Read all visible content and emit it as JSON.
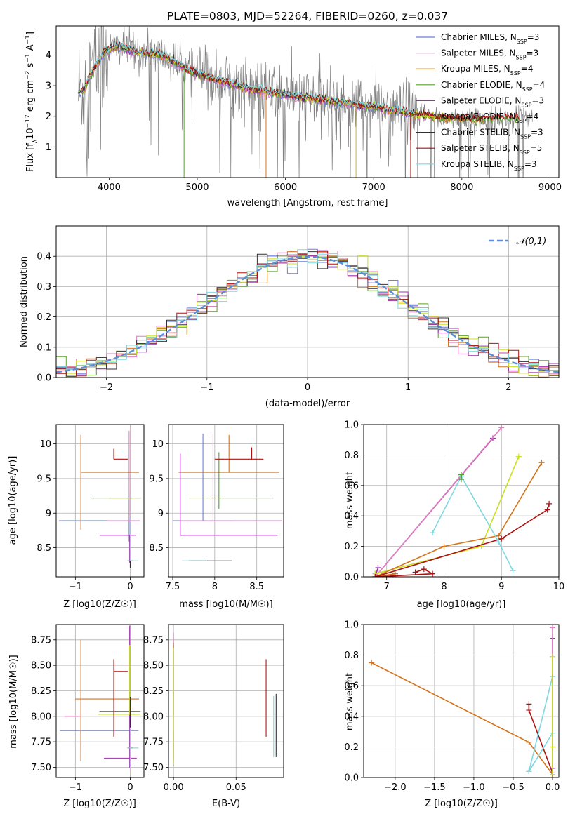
{
  "chart_data": [
    {
      "panel": "spectrum",
      "type": "line",
      "title": "PLATE=0803, MJD=52264, FIBERID=0260, z=0.037",
      "xlabel": "wavelength [Angstrom, rest frame]",
      "ylabel": "Flux [f_λ 10^-17 erg cm^-2 s^-1 A^-1]",
      "xlim": [
        3400,
        9100
      ],
      "ylim": [
        0,
        4.95
      ],
      "xticks": [
        4000,
        5000,
        6000,
        7000,
        8000,
        9000
      ],
      "yticks": [
        1,
        2,
        3,
        4
      ],
      "grid": false,
      "legend_position": "top-right",
      "continuum_anchors": [
        [
          3700,
          2.8
        ],
        [
          3800,
          3.4
        ],
        [
          3950,
          4.1
        ],
        [
          4100,
          4.3
        ],
        [
          4300,
          4.1
        ],
        [
          4600,
          4.0
        ],
        [
          4900,
          3.5
        ],
        [
          5200,
          3.2
        ],
        [
          5600,
          2.9
        ],
        [
          6000,
          2.7
        ],
        [
          6500,
          2.5
        ],
        [
          7000,
          2.3
        ],
        [
          7400,
          2.1
        ],
        [
          7800,
          1.95
        ],
        [
          8200,
          1.9
        ],
        [
          8600,
          1.95
        ],
        [
          8800,
          2.0
        ]
      ],
      "legend": [
        {
          "label": "Chabrier MILES, N",
          "sub": "SSP",
          "tail": "=3",
          "color": "#6b7fd7"
        },
        {
          "label": "Salpeter MILES, N",
          "sub": "SSP",
          "tail": "=3",
          "color": "#e07fc0"
        },
        {
          "label": "Kroupa MILES, N",
          "sub": "SSP",
          "tail": "=4",
          "color": "#d4741a"
        },
        {
          "label": "Chabrier ELODIE, N",
          "sub": "SSP",
          "tail": "=4",
          "color": "#5aa02c"
        },
        {
          "label": "Salpeter ELODIE, N",
          "sub": "SSP",
          "tail": "=3",
          "color": "#9b30a8"
        },
        {
          "label": "Kroupa ELODIE, N",
          "sub": "SSP",
          "tail": "=4",
          "color": "#c8e020"
        },
        {
          "label": "Chabrier STELIB, N",
          "sub": "SSP",
          "tail": "=3",
          "color": "#333333"
        },
        {
          "label": "Salpeter STELIB, N",
          "sub": "SSP",
          "tail": "=5",
          "color": "#b01010"
        },
        {
          "label": "Kroupa STELIB, N",
          "sub": "SSP",
          "tail": "=3",
          "color": "#7fd8e0"
        }
      ],
      "data_color": "#808080"
    },
    {
      "panel": "residuals",
      "type": "step-histogram",
      "xlabel": "(data-model)/error",
      "ylabel": "Normed distribution",
      "xlim": [
        -2.5,
        2.5
      ],
      "ylim": [
        0,
        0.5
      ],
      "xticks": [
        -2,
        -1,
        0,
        1,
        2
      ],
      "yticks": [
        0.0,
        0.1,
        0.2,
        0.3,
        0.4
      ],
      "grid": true,
      "bins": {
        "start": -2.5,
        "width": 0.1,
        "count": 50
      },
      "normal_legend": "𝒩(0,1)",
      "normal_color": "#5b8ed6",
      "series_colors": [
        "#6b7fd7",
        "#e07fc0",
        "#d4741a",
        "#5aa02c",
        "#9b30a8",
        "#c8e020",
        "#333333",
        "#b01010",
        "#7fd8e0"
      ]
    },
    {
      "panel": "Z-age",
      "type": "errorbar",
      "xlabel": "Z [log10(Z/Z☉)]",
      "ylabel": "age  [log10(age/yr)]",
      "xlim": [
        -1.35,
        0.25
      ],
      "ylim": [
        8.08,
        10.28
      ],
      "xticks": [
        -1,
        0
      ],
      "yticks": [
        8.5,
        9.0,
        9.5,
        10.0
      ],
      "grid": true,
      "points": [
        {
          "c": "#6b7fd7",
          "x": -0.02,
          "y": 8.89,
          "xe": [
            1.28,
            0.02
          ],
          "ye": [
            0.3,
            0.3
          ]
        },
        {
          "c": "#e07fc0",
          "x": -0.02,
          "y": 8.89,
          "xe": [
            0.4,
            0.2
          ],
          "ye": [
            0.0,
            1.3
          ]
        },
        {
          "c": "#d4741a",
          "x": -0.9,
          "y": 9.59,
          "xe": [
            0.0,
            1.06
          ],
          "ye": [
            0.83,
            0.54
          ]
        },
        {
          "c": "#5aa02c",
          "x": -0.01,
          "y": 9.22,
          "xe": [
            0.7,
            0.2
          ],
          "ye": [
            0.0,
            0.0
          ]
        },
        {
          "c": "#9b30a8",
          "x": -0.01,
          "y": 8.68,
          "xe": [
            0.55,
            0.12
          ],
          "ye": [
            0.4,
            0.0
          ]
        },
        {
          "c": "#c8e020",
          "x": -0.01,
          "y": 9.22,
          "xe": [
            0.4,
            0.2
          ],
          "ye": [
            0.0,
            0.0
          ]
        },
        {
          "c": "#333333",
          "x": 0.0,
          "y": 8.31,
          "xe": [
            0.05,
            0.05
          ],
          "ye": [
            0.1,
            0.0
          ]
        },
        {
          "c": "#b01010",
          "x": -0.3,
          "y": 9.78,
          "xe": [
            0.0,
            0.26
          ],
          "ye": [
            0.0,
            0.15
          ]
        },
        {
          "c": "#7fd8e0",
          "x": 0.0,
          "y": 8.31,
          "xe": [
            0.05,
            0.15
          ],
          "ye": [
            0.0,
            1.0
          ]
        }
      ]
    },
    {
      "panel": "mass-age",
      "type": "errorbar",
      "xlabel": "mass [log10(M/M☉)]",
      "ylabel": "",
      "xlim": [
        7.45,
        8.82
      ],
      "ylim": [
        8.08,
        10.28
      ],
      "xticks": [
        7.5,
        8.0,
        8.5
      ],
      "yticks": [
        8.5,
        9.0,
        9.5,
        10.0
      ],
      "grid": true,
      "points": [
        {
          "c": "#6b7fd7",
          "x": 7.86,
          "y": 8.89,
          "xe": [
            0.36,
            0.36
          ],
          "ye": [
            0.0,
            1.26
          ]
        },
        {
          "c": "#e07fc0",
          "x": 7.98,
          "y": 8.89,
          "xe": [
            0.4,
            0.82
          ],
          "ye": [
            0.0,
            1.25
          ]
        },
        {
          "c": "#d4741a",
          "x": 8.17,
          "y": 9.59,
          "xe": [
            0.6,
            0.6
          ],
          "ye": [
            0.0,
            0.54
          ]
        },
        {
          "c": "#5aa02c",
          "x": 8.05,
          "y": 9.22,
          "xe": [
            0.0,
            0.65
          ],
          "ye": [
            0.16,
            0.66
          ]
        },
        {
          "c": "#9b30a8",
          "x": 7.59,
          "y": 8.68,
          "xe": [
            0.0,
            1.16
          ],
          "ye": [
            0.0,
            1.18
          ]
        },
        {
          "c": "#c8e020",
          "x": 7.69,
          "y": 9.22,
          "xe": [
            0.0,
            0.4
          ],
          "ye": [
            0.0,
            0.0
          ]
        },
        {
          "c": "#333333",
          "x": 7.69,
          "y": 8.31,
          "xe": [
            0.0,
            0.51
          ],
          "ye": [
            0.0,
            0.0
          ]
        },
        {
          "c": "#b01010",
          "x": 8.44,
          "y": 9.78,
          "xe": [
            0.44,
            0.14
          ],
          "ye": [
            0.0,
            0.17
          ]
        },
        {
          "c": "#7fd8e0",
          "x": 7.69,
          "y": 8.31,
          "xe": [
            0.08,
            0.22
          ],
          "ye": [
            0.0,
            0.0
          ]
        }
      ]
    },
    {
      "panel": "age-weight",
      "type": "line",
      "xlabel": "age  [log10(age/yr)]",
      "ylabel": "mass weight",
      "xlim": [
        6.6,
        10.0
      ],
      "ylim": [
        0,
        1.0
      ],
      "xticks": [
        7,
        8,
        9,
        10
      ],
      "yticks": [
        0.0,
        0.2,
        0.4,
        0.6,
        0.8,
        1.0
      ],
      "grid": true,
      "series": [
        {
          "c": "#9b30a8",
          "x": [
            6.85,
            6.8,
            8.85
          ],
          "y": [
            0.06,
            0.0,
            0.91
          ]
        },
        {
          "c": "#e07fc0",
          "x": [
            6.8,
            6.8,
            9.0
          ],
          "y": [
            0.02,
            0.0,
            0.98
          ]
        },
        {
          "c": "#c8e020",
          "x": [
            6.8,
            8.65,
            9.3
          ],
          "y": [
            0.02,
            0.2,
            0.79
          ]
        },
        {
          "c": "#d4741a",
          "x": [
            7.15,
            6.8,
            8.0,
            8.95,
            9.7
          ],
          "y": [
            0.02,
            0.0,
            0.2,
            0.27,
            0.75
          ]
        },
        {
          "c": "#b01010",
          "x": [
            7.5,
            7.65,
            7.8,
            6.8,
            9.0,
            9.8,
            9.83
          ],
          "y": [
            0.03,
            0.05,
            0.02,
            0.0,
            0.25,
            0.44,
            0.48
          ]
        },
        {
          "c": "#7fd8e0",
          "x": [
            7.8,
            8.3,
            8.95,
            9.2
          ],
          "y": [
            0.29,
            0.66,
            0.23,
            0.04
          ]
        },
        {
          "c": "#5aa02c",
          "x": [
            8.3,
            8.3
          ],
          "y": [
            0.67,
            0.64
          ]
        }
      ]
    },
    {
      "panel": "Z-mass",
      "type": "errorbar",
      "xlabel": "Z [log10(Z/Z☉)]",
      "ylabel": "mass [log10(M/M☉)]",
      "xlim": [
        -1.35,
        0.25
      ],
      "ylim": [
        7.4,
        8.9
      ],
      "xticks": [
        -1,
        0
      ],
      "yticks": [
        7.5,
        7.75,
        8.0,
        8.25,
        8.5,
        8.75
      ],
      "grid": true,
      "points": [
        {
          "c": "#6b7fd7",
          "x": -0.9,
          "y": 7.86,
          "xe": [
            0.38,
            1.05
          ],
          "ye": [
            0.3,
            0.0
          ]
        },
        {
          "c": "#e07fc0",
          "x": -0.9,
          "y": 8.0,
          "xe": [
            0.3,
            0.0
          ],
          "ye": [
            0.0,
            0.0
          ]
        },
        {
          "c": "#d4741a",
          "x": -0.9,
          "y": 8.17,
          "xe": [
            0.1,
            1.06
          ],
          "ye": [
            0.6,
            0.58
          ]
        },
        {
          "c": "#5aa02c",
          "x": -0.01,
          "y": 8.05,
          "xe": [
            0.55,
            0.2
          ],
          "ye": [
            0.0,
            0.0
          ]
        },
        {
          "c": "#9b30a8",
          "x": -0.01,
          "y": 7.59,
          "xe": [
            0.47,
            0.13
          ],
          "ye": [
            0.1,
            1.3
          ]
        },
        {
          "c": "#c8e020",
          "x": -0.01,
          "y": 8.02,
          "xe": [
            0.57,
            0.2
          ],
          "ye": [
            0.0,
            0.68
          ]
        },
        {
          "c": "#333333",
          "x": 0.0,
          "y": 7.69,
          "xe": [
            0.05,
            0.05
          ],
          "ye": [
            0.0,
            0.5
          ]
        },
        {
          "c": "#b01010",
          "x": -0.3,
          "y": 8.44,
          "xe": [
            0.0,
            0.26
          ],
          "ye": [
            0.64,
            0.12
          ]
        },
        {
          "c": "#7fd8e0",
          "x": 0.0,
          "y": 7.69,
          "xe": [
            0.05,
            0.15
          ],
          "ye": [
            0.2,
            0.2
          ]
        }
      ]
    },
    {
      "panel": "EBV-mass",
      "type": "errorbar",
      "xlabel": "E(B-V)",
      "ylabel": "",
      "xlim": [
        -0.004,
        0.088
      ],
      "ylim": [
        7.4,
        8.9
      ],
      "xticks": [
        0.0,
        0.05
      ],
      "yticks": [
        7.5,
        7.75,
        8.0,
        8.25,
        8.5,
        8.75
      ],
      "grid": true,
      "points": [
        {
          "c": "#6b7fd7",
          "x": 0.0,
          "y": 7.86,
          "xe": [
            0.0,
            0.0
          ],
          "ye": [
            0.35,
            0.0
          ]
        },
        {
          "c": "#e07fc0",
          "x": 0.0,
          "y": 8.0,
          "xe": [
            0.0,
            0.0
          ],
          "ye": [
            0.0,
            0.82
          ]
        },
        {
          "c": "#d4741a",
          "x": 0.0,
          "y": 8.17,
          "xe": [
            0.0,
            0.0
          ],
          "ye": [
            0.6,
            0.55
          ]
        },
        {
          "c": "#c8e020",
          "x": 0.0,
          "y": 8.02,
          "xe": [
            0.0,
            0.0
          ],
          "ye": [
            0.5,
            0.65
          ]
        },
        {
          "c": "#b01010",
          "x": 0.074,
          "y": 8.17,
          "xe": [
            0.0,
            0.0
          ],
          "ye": [
            0.37,
            0.39
          ]
        },
        {
          "c": "#7fd8e0",
          "x": 0.08,
          "y": 7.9,
          "xe": [
            0.0,
            0.0
          ],
          "ye": [
            0.3,
            0.3
          ]
        },
        {
          "c": "#333333",
          "x": 0.082,
          "y": 7.9,
          "xe": [
            0.0,
            0.0
          ],
          "ye": [
            0.3,
            0.32
          ]
        }
      ]
    },
    {
      "panel": "Z-weight",
      "type": "line",
      "xlabel": "Z [log10(Z/Z☉)]",
      "ylabel": "mass weight",
      "xlim": [
        -2.4,
        0.08
      ],
      "ylim": [
        0,
        1.0
      ],
      "xticks": [
        -2.0,
        -1.5,
        -1.0,
        -0.5,
        0.0
      ],
      "yticks": [
        0.0,
        0.2,
        0.4,
        0.6,
        0.8,
        1.0
      ],
      "grid": true,
      "series": [
        {
          "c": "#d4741a",
          "x": [
            -2.3,
            -0.3,
            0.0,
            0.0
          ],
          "y": [
            0.75,
            0.23,
            0.02,
            0.0
          ]
        },
        {
          "c": "#b01010",
          "x": [
            -0.3,
            -0.3,
            0.0,
            0.0
          ],
          "y": [
            0.48,
            0.44,
            0.03,
            0.0
          ]
        },
        {
          "c": "#7fd8e0",
          "x": [
            -0.3,
            0.0,
            0.0,
            -0.3
          ],
          "y": [
            0.04,
            0.29,
            0.66,
            0.04
          ]
        },
        {
          "c": "#9b30a8",
          "x": [
            0.0,
            0.0,
            0.0
          ],
          "y": [
            0.91,
            0.06,
            0.0
          ]
        },
        {
          "c": "#e07fc0",
          "x": [
            0.0,
            0.0
          ],
          "y": [
            0.98,
            0.02
          ]
        },
        {
          "c": "#c8e020",
          "x": [
            0.0,
            0.0,
            0.0
          ],
          "y": [
            0.79,
            0.2,
            0.02
          ]
        }
      ]
    }
  ]
}
